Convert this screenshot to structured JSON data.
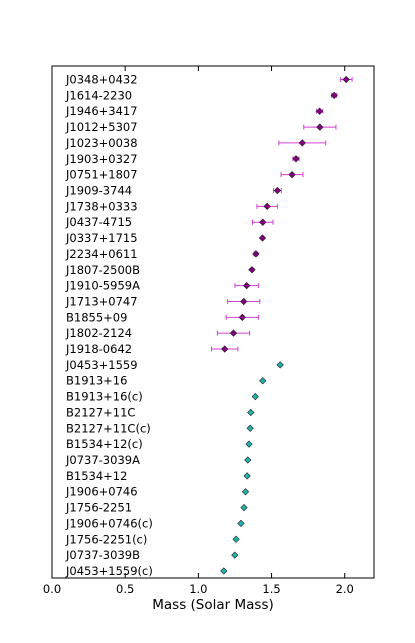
{
  "chart_data": {
    "type": "scatter",
    "title": "",
    "xlabel": "Mass (Solar Mass)",
    "ylabel": "",
    "xlim": [
      0.0,
      2.2
    ],
    "xticks": [
      "0.0",
      "0.5",
      "1.0",
      "1.5",
      "2.0"
    ],
    "grid": false,
    "colors": {
      "group_a": "#800080",
      "group_a_err": "#d43fd4",
      "group_b": "#20b2aa"
    },
    "series": [
      {
        "name": "",
        "marker": "diamond",
        "color": "#800080",
        "points": [
          {
            "label": "J0348+0432",
            "mass": 2.01,
            "err": 0.04
          },
          {
            "label": "J1614-2230",
            "mass": 1.928,
            "err": 0.017
          },
          {
            "label": "J1946+3417",
            "mass": 1.828,
            "err": 0.022
          },
          {
            "label": "J1012+5307",
            "mass": 1.83,
            "err": 0.11
          },
          {
            "label": "J1023+0038",
            "mass": 1.71,
            "err": 0.16
          },
          {
            "label": "J1903+0327",
            "mass": 1.667,
            "err": 0.021
          },
          {
            "label": "J0751+1807",
            "mass": 1.64,
            "err": 0.075
          },
          {
            "label": "J1909-3744",
            "mass": 1.54,
            "err": 0.027
          },
          {
            "label": "J1738+0333",
            "mass": 1.47,
            "err": 0.07
          },
          {
            "label": "J0437-4715",
            "mass": 1.44,
            "err": 0.07
          },
          {
            "label": "J0337+1715",
            "mass": 1.438,
            "err": 0.0013
          },
          {
            "label": "J2234+0611",
            "mass": 1.393,
            "err": 0.013
          },
          {
            "label": "J1807-2500B",
            "mass": 1.366,
            "err": 0.003
          },
          {
            "label": "J1910-5959A",
            "mass": 1.33,
            "err": 0.08
          },
          {
            "label": "J1713+0747",
            "mass": 1.31,
            "err": 0.11
          },
          {
            "label": "B1855+09",
            "mass": 1.3,
            "err": 0.11
          },
          {
            "label": "J1802-2124",
            "mass": 1.24,
            "err": 0.11
          },
          {
            "label": "J1918-0642",
            "mass": 1.18,
            "err": 0.09
          }
        ]
      },
      {
        "name": "",
        "marker": "diamond",
        "color": "#20b2aa",
        "points": [
          {
            "label": "J0453+1559",
            "mass": 1.559
          },
          {
            "label": "B1913+16",
            "mass": 1.44
          },
          {
            "label": "B1913+16(c)",
            "mass": 1.389
          },
          {
            "label": "B2127+11C",
            "mass": 1.358
          },
          {
            "label": "B2127+11C(c)",
            "mass": 1.354
          },
          {
            "label": "B1534+12(c)",
            "mass": 1.346
          },
          {
            "label": "J0737-3039A",
            "mass": 1.338
          },
          {
            "label": "B1534+12",
            "mass": 1.333
          },
          {
            "label": "J1906+0746",
            "mass": 1.322
          },
          {
            "label": "J1756-2251",
            "mass": 1.312
          },
          {
            "label": "J1906+0746(c)",
            "mass": 1.291
          },
          {
            "label": "J1756-2251(c)",
            "mass": 1.258
          },
          {
            "label": "J0737-3039B",
            "mass": 1.249
          },
          {
            "label": "J0453+1559(c)",
            "mass": 1.174
          }
        ]
      }
    ]
  }
}
